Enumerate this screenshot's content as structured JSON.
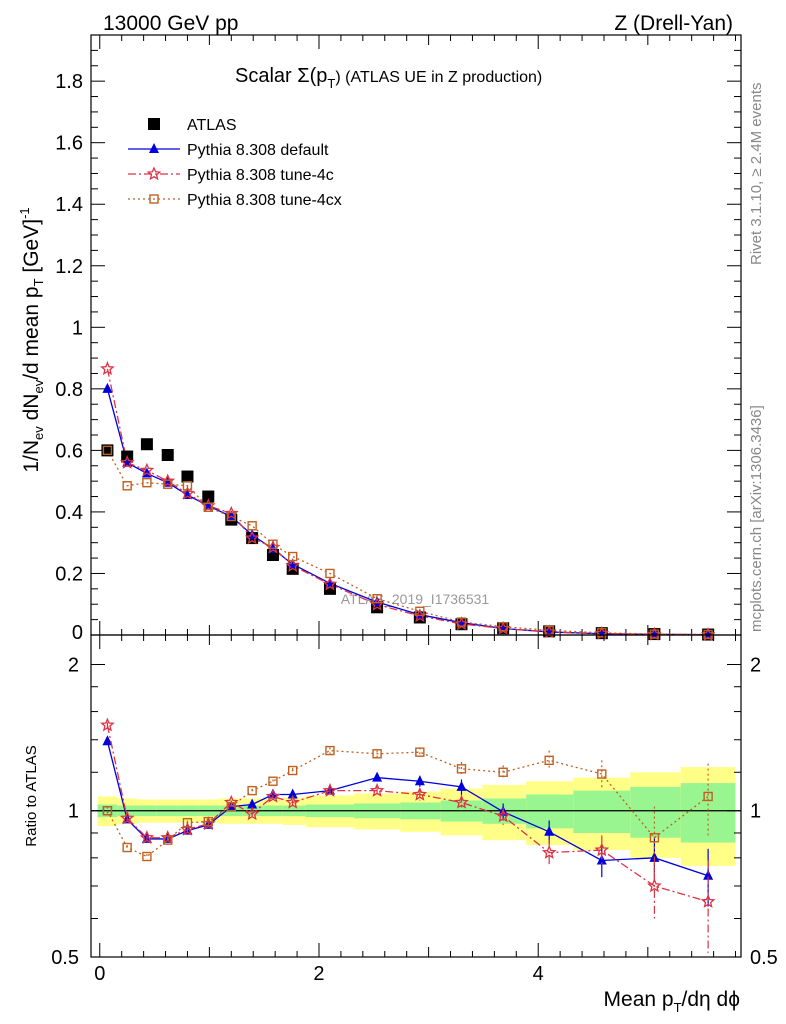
{
  "header": {
    "left": "13000 GeV pp",
    "right": "Z (Drell-Yan)"
  },
  "side_labels": {
    "rivet": "Rivet 3.1.10, ≥ 2.4M events",
    "mcplots": "mcplots.cern.ch [arXiv:1306.3436]"
  },
  "chart_data": [
    {
      "type": "scatter",
      "panel": "main",
      "title_main": "Scalar Σ(p",
      "title_sub": "T",
      "title_rest": ") (ATLAS UE in Z production)",
      "ylabel": "1/N_ev dN_ev/d mean p_T [GeV]^-1",
      "ylabel_parts": {
        "a": "1/N",
        "a_sub": "ev",
        "b": " dN",
        "b_sub": "ev",
        "c": "/d mean p",
        "c_sub": "T",
        "d": " [GeV]",
        "d_sup": "-1"
      },
      "xlim": [
        -0.08,
        5.85
      ],
      "ylim": [
        0,
        1.95
      ],
      "yticks": [
        0.2,
        0.4,
        0.6,
        0.8,
        1,
        1.2,
        1.4,
        1.6,
        1.8
      ],
      "ytick_labels": [
        "0.2",
        "0.4",
        "0.6",
        "0.8",
        "1",
        "1.2",
        "1.4",
        "1.6",
        "1.8"
      ],
      "y_zero_label": "0",
      "watermark": "ATLAS_2019_I1736531",
      "legend_position": "top-left",
      "x": [
        0.07,
        0.25,
        0.43,
        0.62,
        0.8,
        0.99,
        1.2,
        1.39,
        1.58,
        1.76,
        2.1,
        2.53,
        2.92,
        3.3,
        3.68,
        4.1,
        4.58,
        5.06,
        5.55
      ],
      "series": [
        {
          "name": "ATLAS",
          "marker": "square",
          "color": "#000000",
          "line": "none",
          "values": [
            0.6,
            0.58,
            0.62,
            0.585,
            0.515,
            0.45,
            0.375,
            0.315,
            0.26,
            0.215,
            0.15,
            0.09,
            0.057,
            0.035,
            0.022,
            0.012,
            0.006,
            0.003,
            0.0015
          ]
        },
        {
          "name": "Pythia 8.308 default",
          "marker": "triangle",
          "color": "#0000dd",
          "line": "solid",
          "values": [
            0.8,
            0.56,
            0.525,
            0.495,
            0.455,
            0.42,
            0.385,
            0.325,
            0.28,
            0.23,
            0.168,
            0.107,
            0.066,
            0.04,
            0.021,
            0.01,
            0.004,
            0.0022,
            0.001
          ]
        },
        {
          "name": "Pythia 8.308 tune-4c",
          "marker": "star",
          "color": "#dd3344",
          "line": "dashdot",
          "values": [
            0.865,
            0.56,
            0.535,
            0.5,
            0.46,
            0.42,
            0.395,
            0.315,
            0.285,
            0.225,
            0.165,
            0.099,
            0.062,
            0.036,
            0.021,
            0.0095,
            0.005,
            0.002,
            0.001
          ]
        },
        {
          "name": "Pythia 8.308 tune-4cx",
          "marker": "open-square",
          "color": "#c06020",
          "line": "dotted",
          "values": [
            0.6,
            0.485,
            0.495,
            0.49,
            0.485,
            0.415,
            0.385,
            0.355,
            0.295,
            0.255,
            0.2,
            0.118,
            0.077,
            0.042,
            0.027,
            0.015,
            0.0072,
            0.003,
            0.0016
          ]
        }
      ]
    },
    {
      "type": "scatter",
      "panel": "ratio",
      "ylabel": "Ratio to ATLAS",
      "xlabel_main": "Mean p",
      "xlabel_sub": "T",
      "xlabel_rest": "/dη dϕ",
      "ylim": [
        0.5,
        2.3
      ],
      "yscale": "log",
      "yticks": [
        0.5,
        1,
        2
      ],
      "ytick_labels": [
        "0.5",
        "1",
        "2"
      ],
      "xticks": [
        0,
        2,
        4
      ],
      "xtick_labels": [
        "0",
        "2",
        "4"
      ],
      "x": [
        0.07,
        0.25,
        0.43,
        0.62,
        0.8,
        0.99,
        1.2,
        1.39,
        1.58,
        1.76,
        2.1,
        2.53,
        2.92,
        3.3,
        3.68,
        4.1,
        4.58,
        5.06,
        5.55
      ],
      "bin_edges": [
        -0.02,
        0.16,
        0.34,
        0.52,
        0.71,
        0.9,
        1.09,
        1.3,
        1.49,
        1.67,
        1.88,
        2.32,
        2.74,
        3.11,
        3.49,
        3.89,
        4.32,
        4.84,
        5.3,
        5.8
      ],
      "band_inner_halfwidth": [
        0.03,
        0.025,
        0.025,
        0.025,
        0.025,
        0.025,
        0.025,
        0.025,
        0.025,
        0.025,
        0.03,
        0.035,
        0.04,
        0.05,
        0.06,
        0.08,
        0.1,
        0.12,
        0.14
      ],
      "band_outer_halfwidth": [
        0.07,
        0.06,
        0.055,
        0.055,
        0.055,
        0.055,
        0.06,
        0.06,
        0.06,
        0.065,
        0.075,
        0.085,
        0.095,
        0.11,
        0.13,
        0.15,
        0.17,
        0.2,
        0.23
      ],
      "reference_line": 1,
      "series": [
        {
          "name": "ATLAS",
          "marker": "open-square",
          "color": "#777777",
          "line": "none",
          "values": [
            1.0
          ],
          "x_override": [
            0.07
          ]
        },
        {
          "name": "Pythia 8.308 default",
          "marker": "triangle",
          "color": "#0000dd",
          "line": "solid",
          "values": [
            1.39,
            0.96,
            0.875,
            0.875,
            0.91,
            0.935,
            1.02,
            1.03,
            1.08,
            1.08,
            1.1,
            1.17,
            1.15,
            1.12,
            0.995,
            0.905,
            0.79,
            0.8,
            0.735
          ],
          "errors": [
            0.02,
            0.01,
            0.01,
            0.01,
            0.01,
            0.01,
            0.01,
            0.01,
            0.01,
            0.015,
            0.015,
            0.02,
            0.03,
            0.04,
            0.04,
            0.05,
            0.06,
            0.08,
            0.1
          ]
        },
        {
          "name": "Pythia 8.308 tune-4c",
          "marker": "star",
          "color": "#dd3344",
          "line": "dashdot",
          "values": [
            1.5,
            0.965,
            0.88,
            0.88,
            0.915,
            0.94,
            1.04,
            0.985,
            1.07,
            1.04,
            1.1,
            1.1,
            1.08,
            1.04,
            0.975,
            0.82,
            0.83,
            0.7,
            0.65
          ],
          "errors": [
            0.02,
            0.01,
            0.01,
            0.01,
            0.01,
            0.01,
            0.01,
            0.01,
            0.01,
            0.015,
            0.015,
            0.02,
            0.03,
            0.04,
            0.04,
            0.05,
            0.06,
            0.1,
            0.14
          ]
        },
        {
          "name": "Pythia 8.308 tune-4cx",
          "marker": "open-square",
          "color": "#c06020",
          "line": "dotted",
          "values": [
            1.0,
            0.84,
            0.805,
            0.87,
            0.945,
            0.95,
            1.02,
            1.1,
            1.15,
            1.21,
            1.33,
            1.31,
            1.32,
            1.22,
            1.2,
            1.27,
            1.19,
            0.88,
            1.07
          ],
          "errors": [
            0.02,
            0.01,
            0.01,
            0.01,
            0.01,
            0.01,
            0.01,
            0.01,
            0.01,
            0.015,
            0.02,
            0.02,
            0.03,
            0.04,
            0.04,
            0.06,
            0.08,
            0.14,
            0.18
          ]
        }
      ]
    }
  ]
}
